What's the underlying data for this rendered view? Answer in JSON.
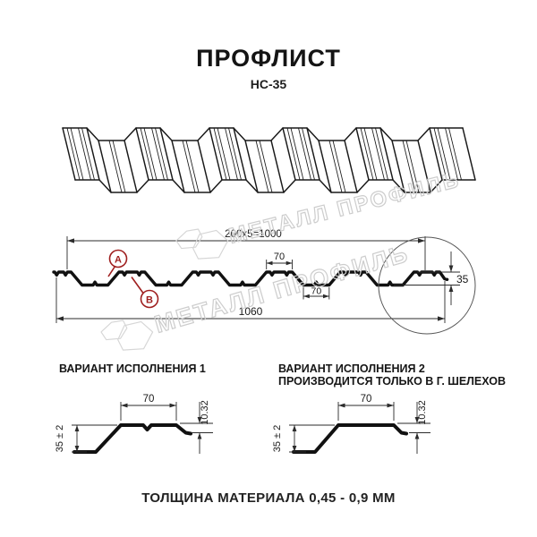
{
  "title": "ПРОФЛИСТ",
  "subtitle": "НС-35",
  "watermark": {
    "text": "МЕТАЛЛ ПРОФИЛЬ"
  },
  "cross_section": {
    "dim_top": "200x5=1000",
    "dim_overall": "1060",
    "dim_crest": "70",
    "dim_valley": "70",
    "dim_height": "35",
    "label_a": "А",
    "label_b": "В"
  },
  "variants": [
    {
      "title": "ВАРИАНТ ИСПОЛНЕНИЯ 1",
      "note": "",
      "dim_width": "70",
      "dim_height": "35 ± 2",
      "dim_lip": "10.32"
    },
    {
      "title": "ВАРИАНТ ИСПОЛНЕНИЯ 2",
      "note": "ПРОИЗВОДИТСЯ ТОЛЬКО В Г. ШЕЛЕХОВ",
      "dim_width": "70",
      "dim_height": "35 ± 2",
      "dim_lip": "10.32"
    }
  ],
  "footer": "ТОЛЩИНА МАТЕРИАЛА 0,45 - 0,9 ММ",
  "colors": {
    "line": "#1a1a1a",
    "accent": "#9f1f1f",
    "watermark": "#cdcdcd"
  }
}
